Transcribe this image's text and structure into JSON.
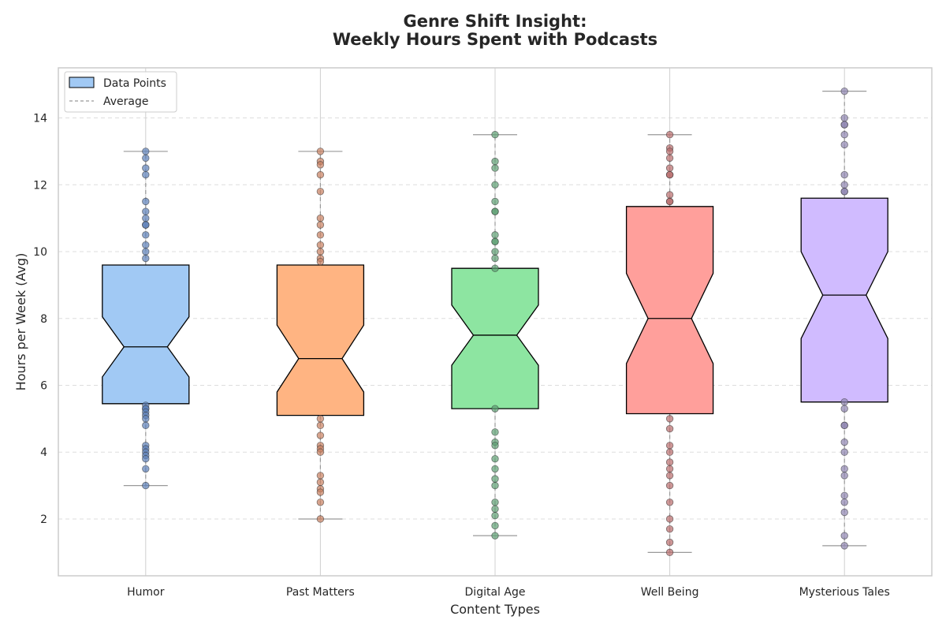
{
  "chart_data": {
    "type": "box",
    "title": [
      "Genre Shift Insight:",
      "Weekly Hours Spent with Podcasts"
    ],
    "xlabel": "Content Types",
    "ylabel": "Hours per Week (Avg)",
    "ylim": [
      0.3,
      15.5
    ],
    "yticks": [
      2,
      4,
      6,
      8,
      10,
      12,
      14
    ],
    "grid": "y",
    "notched": true,
    "legend": {
      "placement": "top-left",
      "entries": [
        {
          "label": "Data Points",
          "kind": "patch"
        },
        {
          "label": "Average",
          "kind": "dashed-line"
        }
      ]
    },
    "categories": [
      "Humor",
      "Past Matters",
      "Digital Age",
      "Well Being",
      "Mysterious Tales"
    ],
    "series": [
      {
        "color": "#a1c9f4",
        "point_color": "#5b7fb8",
        "q1": 5.45,
        "median": 7.15,
        "q3": 9.6,
        "notch": [
          6.25,
          8.05
        ],
        "whisker_low": 3.0,
        "whisker_high": 13.0,
        "points": [
          13.0,
          12.8,
          12.5,
          12.3,
          11.5,
          11.2,
          11.0,
          10.8,
          10.8,
          10.5,
          10.2,
          10.0,
          9.8,
          5.4,
          5.3,
          5.3,
          5.2,
          5.1,
          5.0,
          4.8,
          4.2,
          4.1,
          4.0,
          3.9,
          3.8,
          3.5,
          3.0
        ]
      },
      {
        "color": "#ffb482",
        "point_color": "#c87f5f",
        "q1": 5.1,
        "median": 6.8,
        "q3": 9.6,
        "notch": [
          5.8,
          7.8
        ],
        "whisker_low": 2.0,
        "whisker_high": 13.0,
        "points": [
          13.0,
          12.7,
          12.6,
          12.3,
          11.8,
          11.0,
          10.8,
          10.5,
          10.2,
          10.0,
          9.8,
          9.7,
          5.0,
          4.8,
          4.5,
          4.2,
          4.1,
          4.0,
          3.3,
          3.1,
          2.9,
          2.8,
          2.5,
          2.0
        ]
      },
      {
        "color": "#8de5a1",
        "point_color": "#5d9e72",
        "q1": 5.3,
        "median": 7.5,
        "q3": 9.5,
        "notch": [
          6.6,
          8.4
        ],
        "whisker_low": 1.5,
        "whisker_high": 13.5,
        "points": [
          13.5,
          12.7,
          12.5,
          12.0,
          11.5,
          11.2,
          11.2,
          10.5,
          10.3,
          10.3,
          10.0,
          9.8,
          9.5,
          5.3,
          4.6,
          4.3,
          4.2,
          3.8,
          3.5,
          3.2,
          3.0,
          2.5,
          2.3,
          2.1,
          1.8,
          1.5
        ]
      },
      {
        "color": "#ff9f9b",
        "point_color": "#b86b6b",
        "q1": 5.15,
        "median": 8.0,
        "q3": 11.35,
        "notch": [
          6.65,
          9.35
        ],
        "whisker_low": 1.0,
        "whisker_high": 13.5,
        "points": [
          13.5,
          13.1,
          13.0,
          12.8,
          12.5,
          12.3,
          12.3,
          11.7,
          11.5,
          11.5,
          5.0,
          4.7,
          4.2,
          4.0,
          3.7,
          3.5,
          3.3,
          3.0,
          2.5,
          2.0,
          1.7,
          1.3,
          1.0
        ]
      },
      {
        "color": "#d0bbff",
        "point_color": "#8e85b0",
        "q1": 5.5,
        "median": 8.7,
        "q3": 11.6,
        "notch": [
          7.4,
          10.0
        ],
        "whisker_low": 1.2,
        "whisker_high": 14.8,
        "points": [
          14.8,
          14.0,
          13.8,
          13.8,
          13.5,
          13.2,
          12.3,
          12.0,
          11.8,
          11.8,
          5.5,
          5.3,
          4.8,
          4.8,
          4.3,
          4.0,
          3.5,
          3.3,
          2.7,
          2.5,
          2.2,
          1.5,
          1.2
        ]
      }
    ]
  }
}
